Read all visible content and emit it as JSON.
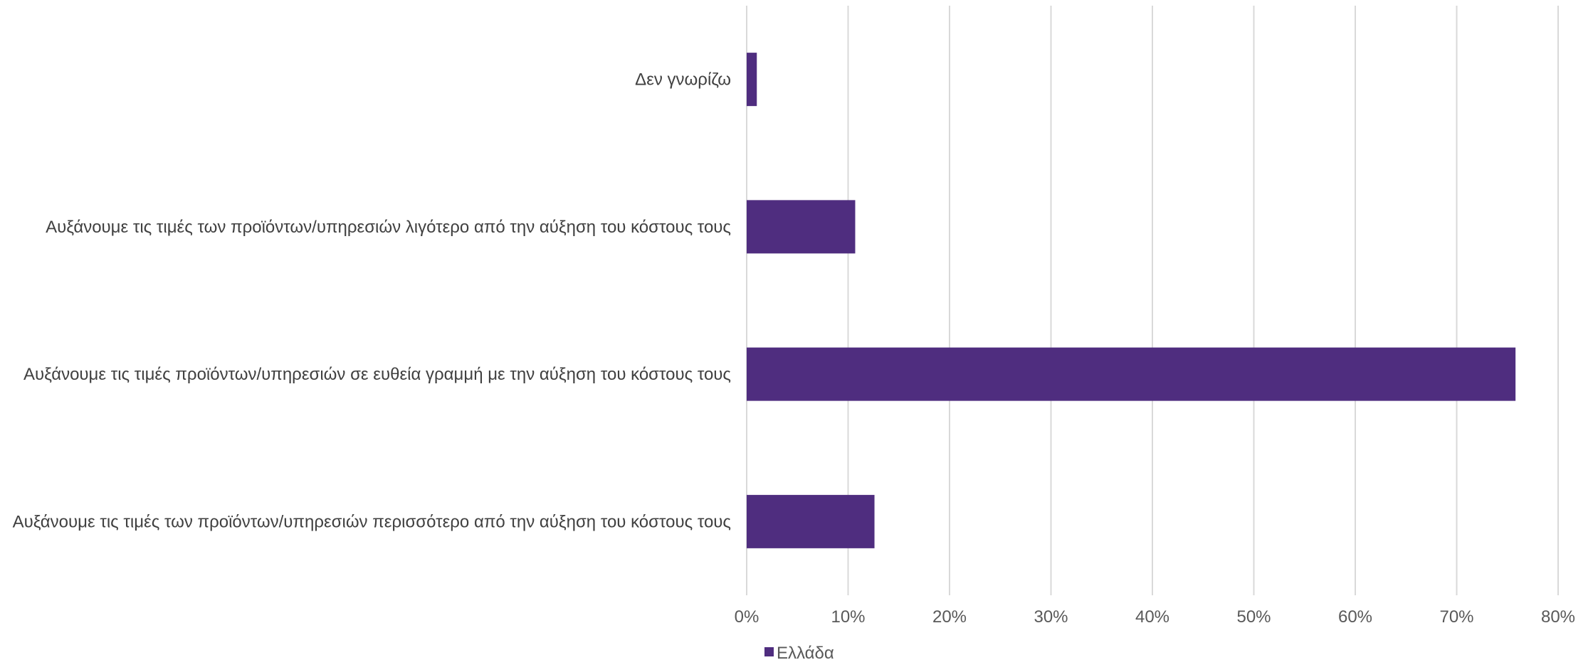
{
  "chart_data": {
    "type": "bar",
    "orientation": "horizontal",
    "categories": [
      "Δεν γνωρίζω",
      "Αυξάνουμε τις τιμές των προϊόντων/υπηρεσιών λιγότερο από την αύξηση του κόστους τους",
      "Αυξάνουμε τις τιμές προϊόντων/υπηρεσιών σε ευθεία γραμμή με την αύξηση του κόστους τους",
      "Αυξάνουμε τις τιμές των προϊόντων/υπηρεσιών περισσότερο από την αύξηση του κόστους τους"
    ],
    "series": [
      {
        "name": "Ελλάδα",
        "color": "#4f2d7f",
        "values": [
          1.0,
          10.7,
          75.8,
          12.6
        ]
      }
    ],
    "xlim": [
      0,
      80
    ],
    "x_ticks": [
      "0%",
      "10%",
      "20%",
      "30%",
      "40%",
      "50%",
      "60%",
      "70%",
      "80%"
    ],
    "grid": "vertical",
    "legend_position": "bottom"
  }
}
